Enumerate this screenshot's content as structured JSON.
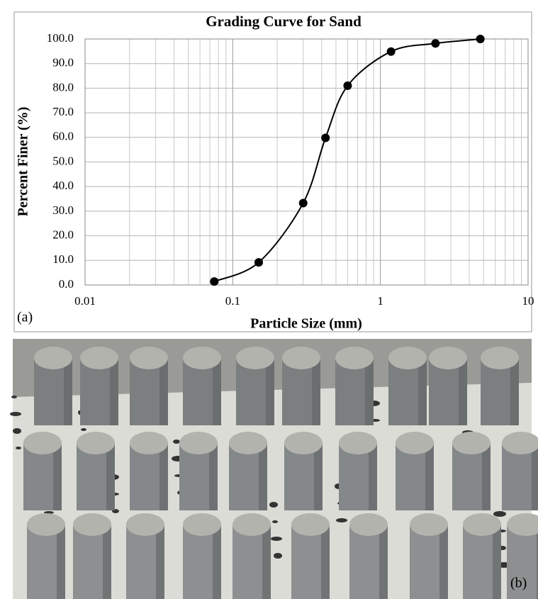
{
  "chart_data": {
    "type": "line",
    "title": "Grading Curve for Sand",
    "x_label": "Particle Size (mm)",
    "y_label": "Percent Finer (%)",
    "x": [
      0.075,
      0.15,
      0.3,
      0.425,
      0.6,
      1.18,
      2.36,
      4.75
    ],
    "values": [
      1.4,
      9.2,
      33.3,
      59.8,
      81.0,
      94.9,
      98.2,
      100.0
    ],
    "color": "#000000",
    "smooth": true,
    "markers": true,
    "x_scale": "log",
    "xlim": [
      0.01,
      10
    ],
    "xticks": [
      0.01,
      0.1,
      1,
      10
    ],
    "ylim": [
      0,
      100
    ],
    "yticks": [
      {
        "value": 0,
        "label": "0.0"
      },
      {
        "value": 10,
        "label": "10.0"
      },
      {
        "value": 20,
        "label": "20.0"
      },
      {
        "value": 30,
        "label": "30.0"
      },
      {
        "value": 40,
        "label": "40.0"
      },
      {
        "value": 50,
        "label": "50.0"
      },
      {
        "value": 60,
        "label": "60.0"
      },
      {
        "value": 70,
        "label": "70.0"
      },
      {
        "value": 80,
        "label": "80.0"
      },
      {
        "value": 90,
        "label": "90.0"
      },
      {
        "value": 100,
        "label": "100.0"
      }
    ],
    "grid": true,
    "minor_grid": true,
    "panel_labels": [
      "(a)",
      "(b)"
    ]
  }
}
